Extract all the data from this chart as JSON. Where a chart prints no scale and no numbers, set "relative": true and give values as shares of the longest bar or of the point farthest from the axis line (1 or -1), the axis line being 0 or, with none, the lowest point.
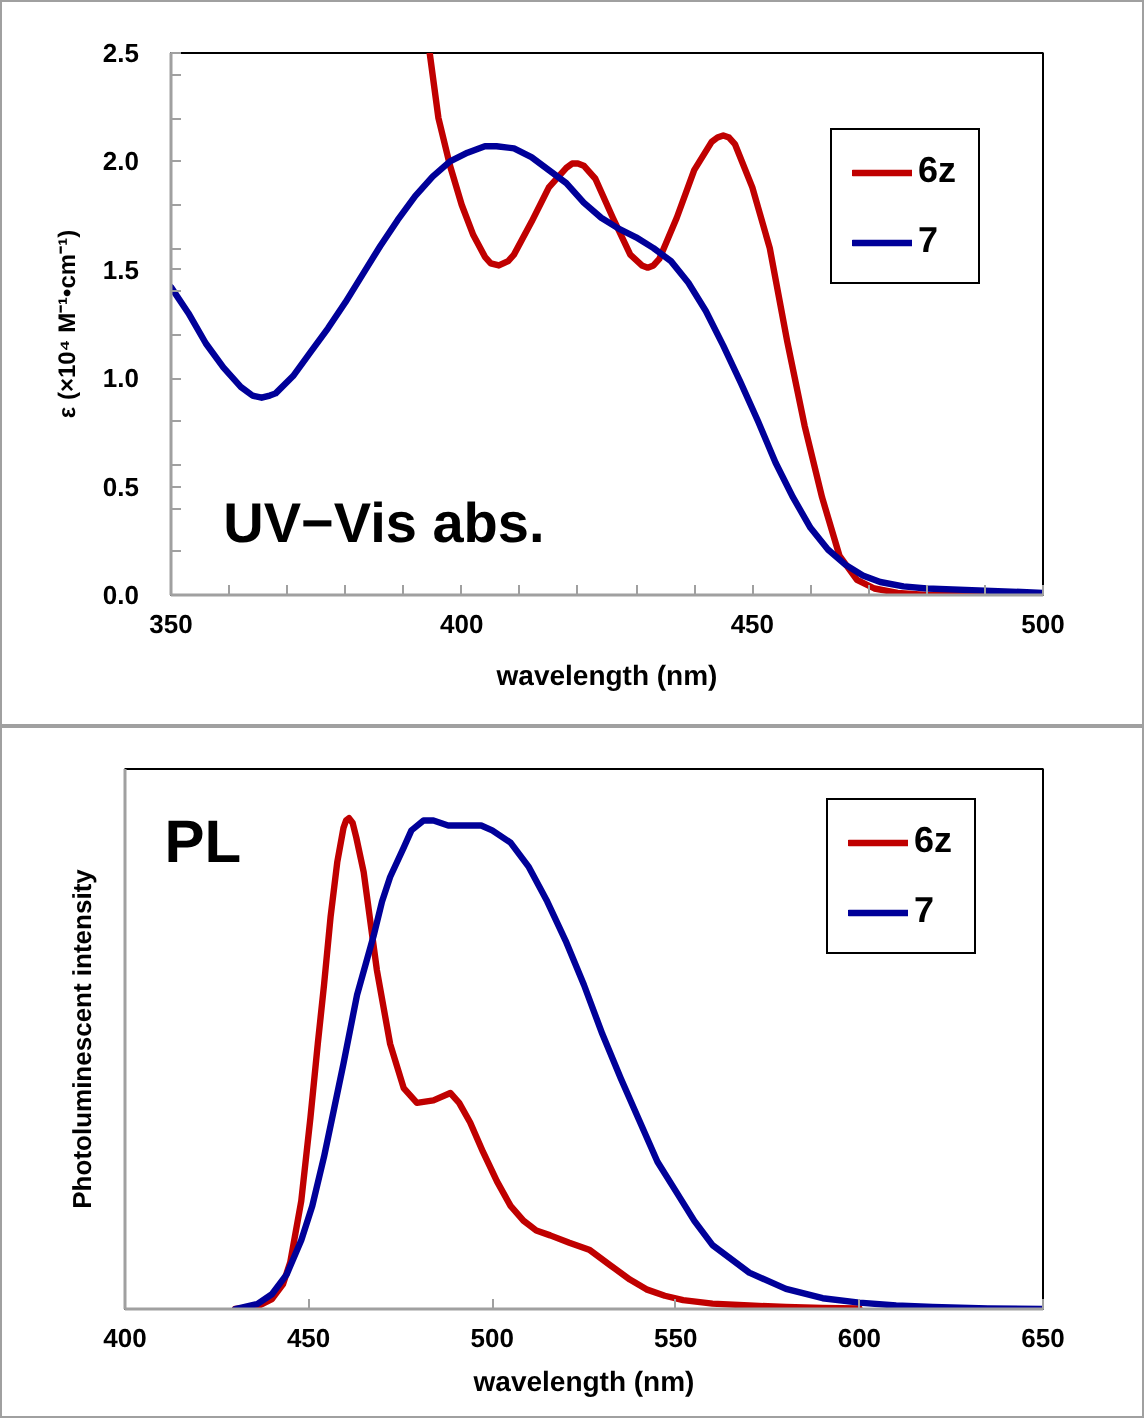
{
  "chart_data": [
    {
      "type": "line",
      "xlabel": "wavelength (nm)",
      "ylabel": "ε (×10⁴ M⁻¹•cm⁻¹)",
      "annotations": [
        "UV−Vis abs."
      ],
      "xlim": [
        350,
        500
      ],
      "ylim": [
        0,
        2.5
      ],
      "xticks": [
        350,
        {
          "value": 360,
          "label": null
        },
        {
          "value": 370,
          "label": null
        },
        {
          "value": 380,
          "label": null
        },
        {
          "value": 390,
          "label": null
        },
        400,
        {
          "value": 410,
          "label": null
        },
        {
          "value": 420,
          "label": null
        },
        {
          "value": 430,
          "label": null
        },
        {
          "value": 440,
          "label": null
        },
        450,
        {
          "value": 460,
          "label": null
        },
        {
          "value": 470,
          "label": null
        },
        {
          "value": 480,
          "label": null
        },
        {
          "value": 490,
          "label": null
        },
        500
      ],
      "yticks": [
        {
          "value": 0,
          "label": "0.0"
        },
        {
          "value": 0.2,
          "label": null
        },
        {
          "value": 0.4,
          "label": null
        },
        0.5,
        {
          "value": 0.6,
          "label": null
        },
        {
          "value": 0.8,
          "label": null
        },
        {
          "value": 1,
          "label": "1.0"
        },
        {
          "value": 1.2,
          "label": null
        },
        {
          "value": 1.4,
          "label": null
        },
        1.5,
        {
          "value": 1.6,
          "label": null
        },
        {
          "value": 1.8,
          "label": null
        },
        {
          "value": 2,
          "label": "2.0"
        },
        {
          "value": 2.2,
          "label": null
        },
        {
          "value": 2.4,
          "label": null
        },
        2.5
      ],
      "legend": "top right",
      "grid": false,
      "line_style": "solid",
      "series": [
        {
          "name": "6z",
          "color": "#c00000",
          "x": [
            394.5,
            396,
            398,
            400,
            402,
            404,
            405,
            406.4,
            408,
            409,
            412,
            415,
            418,
            419,
            420,
            421,
            423,
            426,
            429,
            431,
            432,
            433,
            434,
            437,
            440,
            443,
            444,
            445,
            446,
            447,
            450,
            453,
            456,
            459,
            462,
            465,
            468,
            471,
            475,
            480,
            490,
            500
          ],
          "values": [
            2.5,
            2.2,
            1.98,
            1.8,
            1.66,
            1.56,
            1.53,
            1.52,
            1.54,
            1.57,
            1.72,
            1.88,
            1.97,
            1.99,
            1.99,
            1.98,
            1.92,
            1.74,
            1.57,
            1.52,
            1.51,
            1.52,
            1.55,
            1.74,
            1.96,
            2.09,
            2.11,
            2.12,
            2.11,
            2.08,
            1.88,
            1.6,
            1.17,
            0.78,
            0.45,
            0.18,
            0.07,
            0.03,
            0.01,
            0,
            0,
            0
          ]
        },
        {
          "name": "7",
          "color": "#000099",
          "x": [
            350,
            353,
            356,
            359,
            362,
            364,
            365.6,
            367,
            368,
            371,
            374,
            377,
            380,
            383,
            386,
            389,
            392,
            395,
            398,
            401,
            404,
            406,
            409,
            412,
            415,
            418,
            421,
            424,
            427,
            430,
            433,
            436,
            439,
            442,
            445,
            448,
            451,
            454,
            457,
            460,
            463,
            466,
            469,
            472,
            476,
            480,
            490,
            500
          ],
          "values": [
            1.42,
            1.3,
            1.16,
            1.05,
            0.96,
            0.92,
            0.91,
            0.92,
            0.93,
            1.01,
            1.12,
            1.23,
            1.35,
            1.48,
            1.61,
            1.73,
            1.84,
            1.93,
            2.0,
            2.04,
            2.07,
            2.07,
            2.06,
            2.02,
            1.96,
            1.9,
            1.81,
            1.74,
            1.69,
            1.65,
            1.6,
            1.54,
            1.44,
            1.31,
            1.15,
            0.98,
            0.8,
            0.61,
            0.45,
            0.31,
            0.21,
            0.14,
            0.09,
            0.06,
            0.04,
            0.03,
            0.02,
            0.01
          ]
        }
      ]
    },
    {
      "type": "line",
      "relative": true,
      "xlabel": "wavelength (nm)",
      "ylabel": "Photoluminescent intensity",
      "annotations": [
        "PL"
      ],
      "xlim": [
        400,
        650
      ],
      "xticks": [
        400,
        450,
        500,
        550,
        600,
        650
      ],
      "legend": "top right",
      "grid": false,
      "line_style": "solid",
      "series": [
        {
          "name": "6z",
          "color": "#c00000",
          "x": [
            430,
            436,
            440,
            443,
            445,
            448,
            450.5,
            452.5,
            454.2,
            456,
            457.8,
            459.5,
            460.2,
            461,
            462,
            463,
            465,
            468.6,
            472.2,
            475.9,
            479.5,
            484,
            488.6,
            491,
            494,
            497.5,
            501.3,
            505,
            508.5,
            512,
            515.8,
            521,
            526.6,
            532,
            537.5,
            542,
            547,
            552,
            560,
            570,
            580,
            590,
            600
          ],
          "values": [
            0,
            0.005,
            0.02,
            0.05,
            0.095,
            0.22,
            0.39,
            0.54,
            0.66,
            0.8,
            0.91,
            0.98,
            0.995,
            1.0,
            0.99,
            0.96,
            0.89,
            0.69,
            0.54,
            0.45,
            0.42,
            0.425,
            0.44,
            0.42,
            0.38,
            0.32,
            0.26,
            0.21,
            0.18,
            0.16,
            0.15,
            0.135,
            0.12,
            0.09,
            0.06,
            0.04,
            0.027,
            0.018,
            0.011,
            0.007,
            0.004,
            0.002,
            0.001
          ]
        },
        {
          "name": "7",
          "color": "#000099",
          "x": [
            430,
            436,
            440,
            444,
            448,
            451,
            454.2,
            457,
            459.5,
            463.2,
            467.7,
            470,
            472.2,
            475.9,
            478,
            481.3,
            484,
            488,
            492,
            497,
            500,
            505,
            510,
            515,
            520,
            525,
            530,
            535,
            540,
            545,
            550,
            555,
            560,
            570,
            580,
            590,
            600,
            610,
            620,
            635,
            650
          ],
          "values": [
            0,
            0.01,
            0.03,
            0.07,
            0.14,
            0.21,
            0.31,
            0.41,
            0.5,
            0.64,
            0.76,
            0.83,
            0.88,
            0.94,
            0.975,
            0.995,
            0.995,
            0.985,
            0.985,
            0.985,
            0.975,
            0.95,
            0.9,
            0.83,
            0.75,
            0.66,
            0.56,
            0.47,
            0.385,
            0.3,
            0.24,
            0.18,
            0.13,
            0.074,
            0.041,
            0.022,
            0.013,
            0.007,
            0.004,
            0.001,
            0
          ]
        }
      ]
    }
  ]
}
